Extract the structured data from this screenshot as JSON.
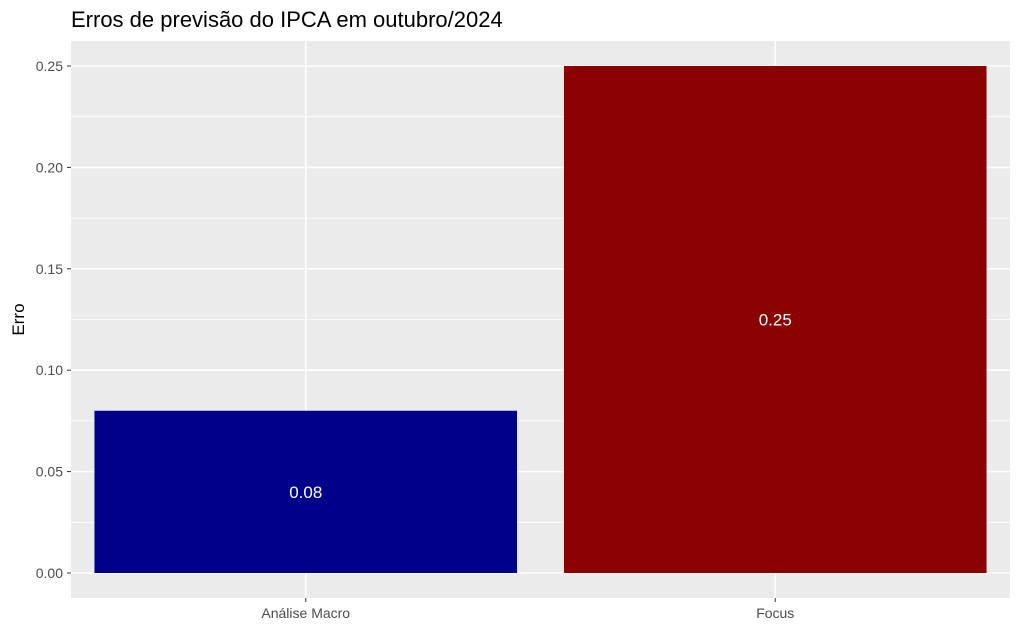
{
  "chart_data": {
    "type": "bar",
    "title": "Erros de previsão do IPCA em outubro/2024",
    "xlabel": "",
    "ylabel": "Erro",
    "categories": [
      "Análise Macro",
      "Focus"
    ],
    "values": [
      0.08,
      0.25
    ],
    "data_labels": [
      "0.08",
      "0.25"
    ],
    "bar_colors": [
      "#00008b",
      "#8b0000"
    ],
    "ylim": [
      0,
      0.2625
    ],
    "yticks": [
      0.0,
      0.05,
      0.1,
      0.15,
      0.2,
      0.25
    ],
    "ytick_labels": [
      "0.00",
      "0.05",
      "0.10",
      "0.15",
      "0.20",
      "0.25"
    ],
    "grid": true,
    "legend": "none",
    "panel_background": "#ebebeb",
    "grid_color": "#ffffff"
  }
}
